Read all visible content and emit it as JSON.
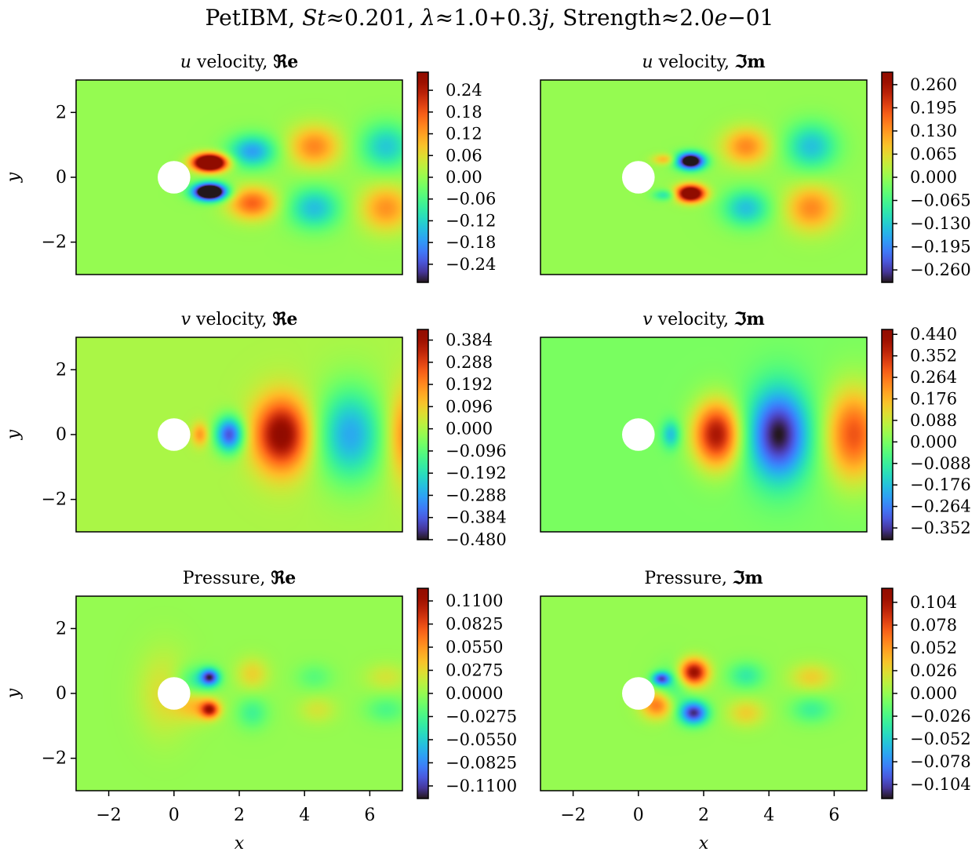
{
  "figure": {
    "title": {
      "prefix": "PetIBM, ",
      "st_sym": "St",
      "st_rel": "≈0.201, ",
      "lam_sym": "λ",
      "lam_rel": "≈1.0+0.3",
      "j_sym": "j",
      "str_text": ", Strength≈2.0",
      "e_sym": "e",
      "str_tail": "−01"
    }
  },
  "axis_text": {
    "y_label": "y",
    "x_label": "x",
    "y_ticks": [
      "2",
      "0",
      "−2"
    ],
    "x_ticks": [
      "−2",
      "0",
      "2",
      "4",
      "6"
    ]
  },
  "panels": [
    {
      "title_var": "u",
      "title_rest": " velocity, ",
      "title_part": "ℜe",
      "colorbar": {
        "vmin": -0.29,
        "vmax": 0.29,
        "ticks": [
          "0.24",
          "0.18",
          "0.12",
          "0.06",
          "0.00",
          "−0.06",
          "−0.12",
          "−0.18",
          "−0.24"
        ]
      }
    },
    {
      "title_var": "u",
      "title_rest": " velocity, ",
      "title_part": "ℑm",
      "colorbar": {
        "vmin": -0.295,
        "vmax": 0.295,
        "ticks": [
          "0.260",
          "0.195",
          "0.130",
          "0.065",
          "0.000",
          "−0.065",
          "−0.130",
          "−0.195",
          "−0.260"
        ]
      }
    },
    {
      "title_var": "v",
      "title_rest": " velocity, ",
      "title_part": "ℜe",
      "colorbar": {
        "vmin": -0.48,
        "vmax": 0.43,
        "ticks": [
          "0.384",
          "0.288",
          "0.192",
          "0.096",
          "0.000",
          "−0.096",
          "−0.192",
          "−0.288",
          "−0.384",
          "−0.480"
        ]
      }
    },
    {
      "title_var": "v",
      "title_rest": " velocity, ",
      "title_part": "ℑm",
      "colorbar": {
        "vmin": -0.4,
        "vmax": 0.46,
        "ticks": [
          "0.440",
          "0.352",
          "0.264",
          "0.176",
          "0.088",
          "0.000",
          "−0.088",
          "−0.176",
          "−0.264",
          "−0.352"
        ]
      }
    },
    {
      "title_var": "",
      "title_rest": "Pressure, ",
      "title_part": "ℜe",
      "colorbar": {
        "vmin": -0.125,
        "vmax": 0.125,
        "ticks": [
          "0.1100",
          "0.0825",
          "0.0550",
          "0.0275",
          "0.0000",
          "−0.0275",
          "−0.0550",
          "−0.0825",
          "−0.1100"
        ]
      }
    },
    {
      "title_var": "",
      "title_rest": "Pressure, ",
      "title_part": "ℑm",
      "colorbar": {
        "vmin": -0.12,
        "vmax": 0.12,
        "ticks": [
          "0.104",
          "0.078",
          "0.052",
          "0.026",
          "0.000",
          "−0.026",
          "−0.052",
          "−0.078",
          "−0.104"
        ]
      }
    }
  ],
  "chart_data": {
    "type": "heatmap",
    "colormap": "turbo",
    "xlim": [
      -3,
      7
    ],
    "ylim": [
      -3,
      3
    ],
    "cylinder": {
      "center": [
        0,
        0
      ],
      "radius": 0.5
    },
    "fields": [
      {
        "panel": 0,
        "blobs": [
          {
            "x": 1.1,
            "y": 0.45,
            "sx": 0.35,
            "sy": 0.18,
            "a": 0.5
          },
          {
            "x": 1.1,
            "y": -0.45,
            "sx": 0.35,
            "sy": 0.18,
            "a": -0.5
          },
          {
            "x": 2.4,
            "y": 0.8,
            "sx": 0.5,
            "sy": 0.35,
            "a": -0.17
          },
          {
            "x": 2.4,
            "y": -0.8,
            "sx": 0.5,
            "sy": 0.35,
            "a": 0.17
          },
          {
            "x": 4.3,
            "y": 0.95,
            "sx": 0.55,
            "sy": 0.45,
            "a": 0.14
          },
          {
            "x": 4.3,
            "y": -0.95,
            "sx": 0.55,
            "sy": 0.45,
            "a": -0.14
          },
          {
            "x": 6.5,
            "y": 0.95,
            "sx": 0.55,
            "sy": 0.5,
            "a": -0.13
          },
          {
            "x": 6.5,
            "y": -0.95,
            "sx": 0.55,
            "sy": 0.5,
            "a": 0.13
          }
        ]
      },
      {
        "panel": 1,
        "blobs": [
          {
            "x": 0.8,
            "y": 0.55,
            "sx": 0.25,
            "sy": 0.12,
            "a": 0.1
          },
          {
            "x": 0.8,
            "y": -0.55,
            "sx": 0.25,
            "sy": 0.12,
            "a": -0.1
          },
          {
            "x": 1.6,
            "y": 0.5,
            "sx": 0.3,
            "sy": 0.18,
            "a": -0.4
          },
          {
            "x": 1.6,
            "y": -0.5,
            "sx": 0.3,
            "sy": 0.18,
            "a": 0.4
          },
          {
            "x": 3.3,
            "y": 0.95,
            "sx": 0.5,
            "sy": 0.4,
            "a": 0.14
          },
          {
            "x": 3.3,
            "y": -0.95,
            "sx": 0.5,
            "sy": 0.4,
            "a": -0.14
          },
          {
            "x": 5.3,
            "y": 0.95,
            "sx": 0.55,
            "sy": 0.5,
            "a": -0.14
          },
          {
            "x": 5.3,
            "y": -0.95,
            "sx": 0.55,
            "sy": 0.5,
            "a": 0.14
          }
        ]
      },
      {
        "panel": 2,
        "blobs": [
          {
            "x": 0.8,
            "y": 0,
            "sx": 0.18,
            "sy": 0.25,
            "a": 0.17
          },
          {
            "x": 1.7,
            "y": 0,
            "sx": 0.3,
            "sy": 0.38,
            "a": -0.4
          },
          {
            "x": 3.3,
            "y": 0,
            "sx": 0.6,
            "sy": 0.8,
            "a": 0.42
          },
          {
            "x": 5.4,
            "y": 0,
            "sx": 0.7,
            "sy": 1.0,
            "a": -0.28
          },
          {
            "x": 7.1,
            "y": 0,
            "sx": 0.4,
            "sy": 1.0,
            "a": 0.2
          }
        ]
      },
      {
        "panel": 3,
        "blobs": [
          {
            "x": 1.0,
            "y": 0,
            "sx": 0.2,
            "sy": 0.3,
            "a": -0.18
          },
          {
            "x": 2.4,
            "y": 0,
            "sx": 0.5,
            "sy": 0.7,
            "a": 0.4
          },
          {
            "x": 4.3,
            "y": 0,
            "sx": 0.65,
            "sy": 1.0,
            "a": -0.4
          },
          {
            "x": 6.6,
            "y": 0,
            "sx": 0.6,
            "sy": 1.0,
            "a": 0.3
          }
        ]
      },
      {
        "panel": 4,
        "blobs": [
          {
            "x": 0.7,
            "y": 0.35,
            "sx": 0.45,
            "sy": 0.35,
            "a": -0.04
          },
          {
            "x": 0.7,
            "y": -0.35,
            "sx": 0.45,
            "sy": 0.35,
            "a": 0.04
          },
          {
            "x": 1.1,
            "y": 0.5,
            "sx": 0.2,
            "sy": 0.18,
            "a": -0.1
          },
          {
            "x": 1.1,
            "y": -0.5,
            "sx": 0.2,
            "sy": 0.18,
            "a": 0.09
          },
          {
            "x": -0.3,
            "y": 0,
            "sx": 0.55,
            "sy": 0.9,
            "a": 0.025
          },
          {
            "x": 2.4,
            "y": 0.6,
            "sx": 0.35,
            "sy": 0.35,
            "a": 0.03
          },
          {
            "x": 2.4,
            "y": -0.6,
            "sx": 0.35,
            "sy": 0.35,
            "a": -0.03
          },
          {
            "x": 4.3,
            "y": 0.5,
            "sx": 0.4,
            "sy": 0.3,
            "a": -0.02
          },
          {
            "x": 4.4,
            "y": -0.5,
            "sx": 0.4,
            "sy": 0.3,
            "a": 0.02
          },
          {
            "x": 6.5,
            "y": 0.5,
            "sx": 0.45,
            "sy": 0.3,
            "a": 0.02
          },
          {
            "x": 6.5,
            "y": -0.5,
            "sx": 0.45,
            "sy": 0.3,
            "a": -0.025
          }
        ]
      },
      {
        "panel": 5,
        "blobs": [
          {
            "x": 0.7,
            "y": 0.45,
            "sx": 0.2,
            "sy": 0.15,
            "a": -0.09
          },
          {
            "x": 0.6,
            "y": -0.35,
            "sx": 0.35,
            "sy": 0.3,
            "a": 0.07
          },
          {
            "x": 1.0,
            "y": 0.1,
            "sx": 0.35,
            "sy": 0.5,
            "a": -0.03
          },
          {
            "x": 1.7,
            "y": 0.65,
            "sx": 0.3,
            "sy": 0.28,
            "a": 0.11
          },
          {
            "x": 1.7,
            "y": -0.6,
            "sx": 0.3,
            "sy": 0.25,
            "a": -0.11
          },
          {
            "x": 3.3,
            "y": 0.55,
            "sx": 0.4,
            "sy": 0.3,
            "a": -0.035
          },
          {
            "x": 3.3,
            "y": -0.6,
            "sx": 0.4,
            "sy": 0.3,
            "a": 0.03
          },
          {
            "x": 5.3,
            "y": 0.5,
            "sx": 0.45,
            "sy": 0.3,
            "a": 0.03
          },
          {
            "x": 5.3,
            "y": -0.5,
            "sx": 0.45,
            "sy": 0.3,
            "a": -0.03
          }
        ]
      }
    ]
  }
}
